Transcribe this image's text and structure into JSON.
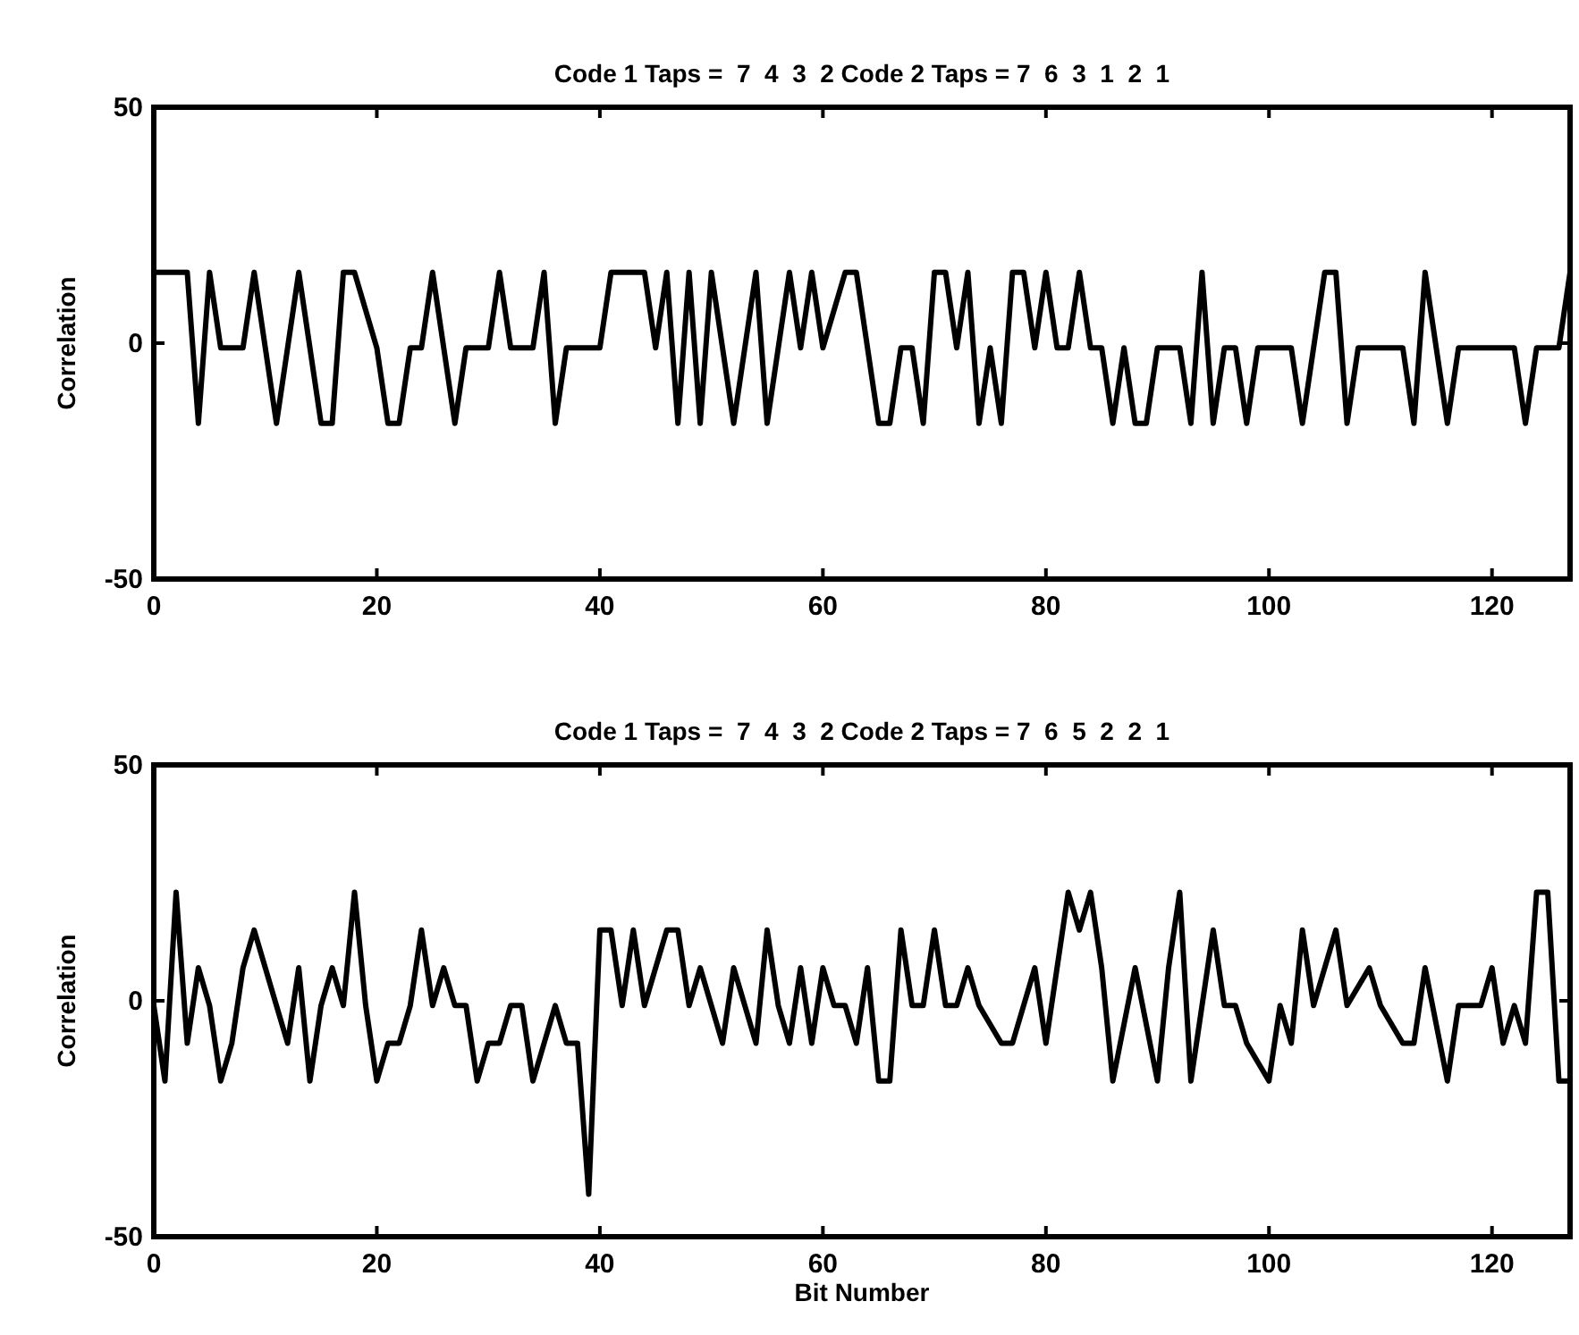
{
  "chart_data": [
    {
      "type": "line",
      "title": "Code 1 Taps =  7  4  3  2 Code 2 Taps = 7  6  3  1  2  1",
      "ylabel": "Correlation",
      "xlim": [
        0,
        127
      ],
      "ylim": [
        -50,
        50
      ],
      "xticks": [
        0,
        20,
        40,
        60,
        80,
        100,
        120
      ],
      "yticks": [
        -50,
        0,
        50
      ],
      "grid": false,
      "line_style": "solid",
      "tick_labels": "xy",
      "series": [
        {
          "color": "#000000",
          "x": [
            0,
            3,
            4,
            5,
            6,
            8,
            9,
            11,
            13,
            15,
            16,
            17,
            18,
            20,
            21,
            22,
            23,
            24,
            25,
            27,
            28,
            30,
            31,
            32,
            34,
            35,
            36,
            37,
            40,
            41,
            44,
            45,
            46,
            47,
            48,
            49,
            50,
            51,
            52,
            53,
            54,
            55,
            56,
            57,
            58,
            59,
            60,
            62,
            63,
            65,
            66,
            67,
            68,
            69,
            70,
            71,
            72,
            73,
            74,
            75,
            76,
            77,
            78,
            79,
            80,
            81,
            82,
            83,
            84,
            85,
            86,
            87,
            88,
            89,
            90,
            92,
            93,
            94,
            95,
            96,
            97,
            98,
            99,
            102,
            103,
            105,
            106,
            107,
            108,
            112,
            113,
            114,
            115,
            116,
            117,
            122,
            123,
            124,
            126,
            127
          ],
          "values": [
            15,
            15,
            -17,
            15,
            -1,
            -1,
            15,
            -17,
            15,
            -17,
            -17,
            15,
            15,
            -1,
            -17,
            -17,
            -1,
            -1,
            15,
            -17,
            -1,
            -1,
            15,
            -1,
            -1,
            15,
            -17,
            -1,
            -1,
            15,
            15,
            -1,
            15,
            -17,
            15,
            -17,
            15,
            -1,
            -17,
            -1,
            15,
            -17,
            -1,
            15,
            -1,
            15,
            -1,
            15,
            15,
            -17,
            -17,
            -1,
            -1,
            -17,
            15,
            15,
            -1,
            15,
            -17,
            -1,
            -17,
            15,
            15,
            -1,
            15,
            -1,
            -1,
            15,
            -1,
            -1,
            -17,
            -1,
            -17,
            -17,
            -1,
            -1,
            -17,
            15,
            -17,
            -1,
            -1,
            -17,
            -1,
            -1,
            -17,
            15,
            15,
            -17,
            -1,
            -1,
            -17,
            15,
            -1,
            -17,
            -1,
            -1,
            -17,
            -1,
            -1,
            15
          ]
        }
      ]
    },
    {
      "type": "line",
      "title": "Code 1 Taps =  7  4  3  2 Code 2 Taps = 7  6  5  2  2  1",
      "xlabel": "Bit Number",
      "ylabel": "Correlation",
      "xlim": [
        0,
        127
      ],
      "ylim": [
        -50,
        50
      ],
      "xticks": [
        0,
        20,
        40,
        60,
        80,
        100,
        120
      ],
      "yticks": [
        -50,
        0,
        50
      ],
      "grid": false,
      "line_style": "solid",
      "tick_labels": "xy",
      "series": [
        {
          "color": "#000000",
          "x": [
            0,
            1,
            2,
            3,
            4,
            5,
            6,
            7,
            8,
            9,
            10,
            11,
            12,
            13,
            14,
            15,
            16,
            17,
            18,
            19,
            20,
            21,
            22,
            23,
            24,
            25,
            26,
            27,
            28,
            29,
            30,
            31,
            32,
            33,
            34,
            35,
            36,
            37,
            38,
            39,
            40,
            41,
            42,
            43,
            44,
            46,
            47,
            48,
            49,
            50,
            51,
            52,
            53,
            54,
            55,
            56,
            57,
            58,
            59,
            60,
            61,
            62,
            63,
            64,
            65,
            66,
            67,
            68,
            69,
            70,
            71,
            72,
            73,
            74,
            76,
            77,
            79,
            80,
            81,
            82,
            83,
            84,
            85,
            86,
            88,
            90,
            91,
            92,
            93,
            95,
            96,
            97,
            98,
            100,
            101,
            102,
            103,
            104,
            106,
            107,
            109,
            110,
            112,
            113,
            114,
            116,
            117,
            119,
            120,
            121,
            122,
            123,
            124,
            125,
            126,
            127
          ],
          "values": [
            -1,
            -17,
            23,
            -9,
            7,
            -1,
            -17,
            -9,
            7,
            15,
            7,
            -1,
            -9,
            7,
            -17,
            -1,
            7,
            -1,
            23,
            -1,
            -17,
            -9,
            -9,
            -1,
            15,
            -1,
            7,
            -1,
            -1,
            -17,
            -9,
            -9,
            -1,
            -1,
            -17,
            -9,
            -1,
            -9,
            -9,
            -41,
            15,
            15,
            -1,
            15,
            -1,
            15,
            15,
            -1,
            7,
            -1,
            -9,
            7,
            -1,
            -9,
            15,
            -1,
            -9,
            7,
            -9,
            7,
            -1,
            -1,
            -9,
            7,
            -17,
            -17,
            15,
            -1,
            -1,
            15,
            -1,
            -1,
            7,
            -1,
            -9,
            -9,
            7,
            -9,
            7,
            23,
            15,
            23,
            7,
            -17,
            7,
            -17,
            7,
            23,
            -17,
            15,
            -1,
            -1,
            -9,
            -17,
            -1,
            -9,
            15,
            -1,
            15,
            -1,
            7,
            -1,
            -9,
            -9,
            7,
            -17,
            -1,
            -1,
            7,
            -9,
            -1,
            -9,
            23,
            23,
            -17,
            -17
          ]
        }
      ]
    }
  ]
}
